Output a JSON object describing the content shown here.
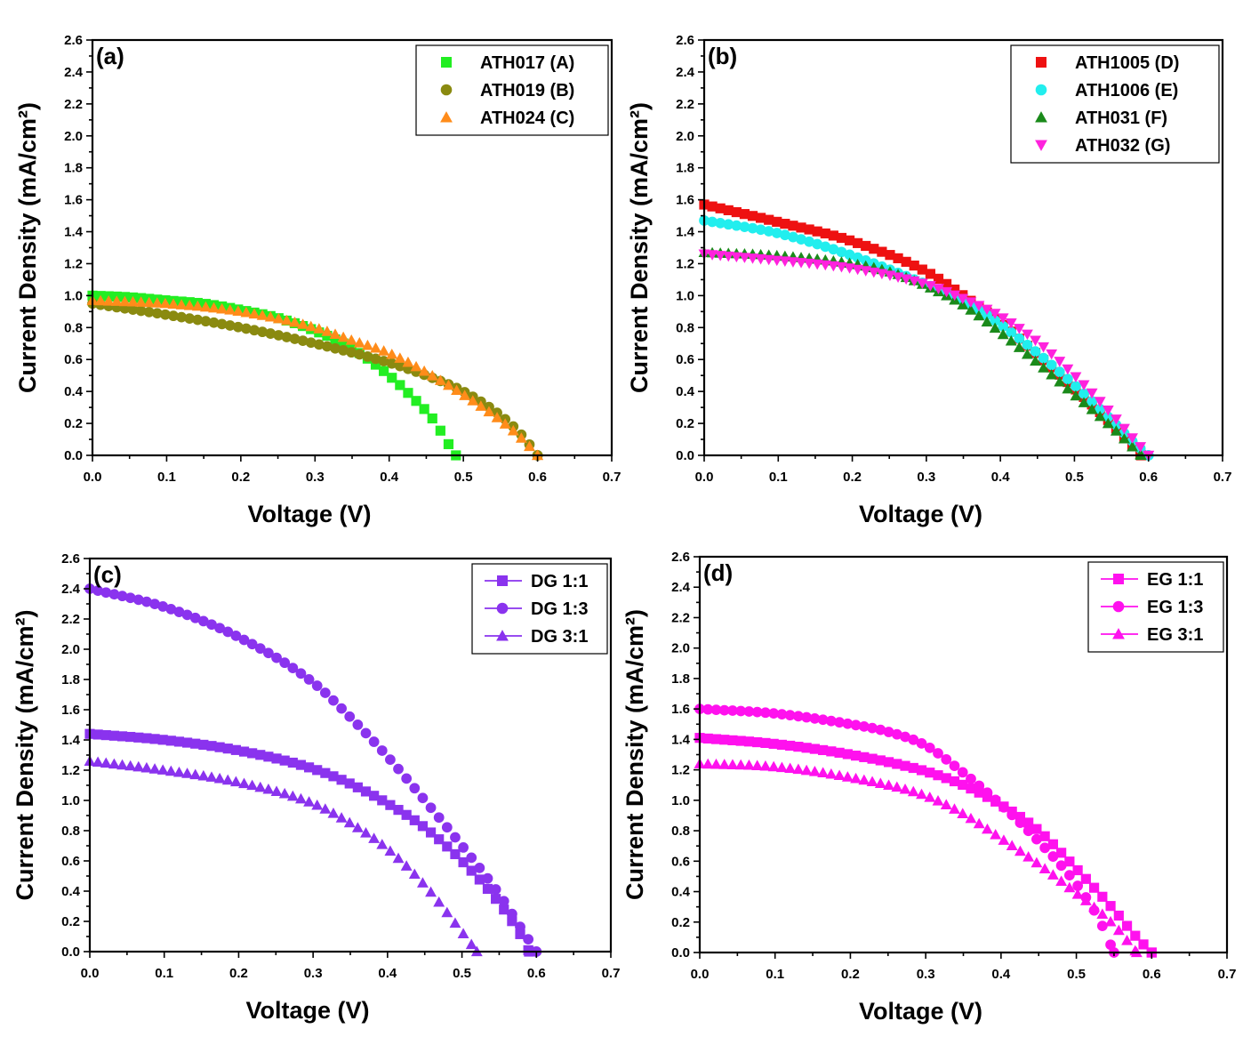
{
  "chart_data": [
    {
      "type": "scatter",
      "panel_label": "(a)",
      "xlabel": "Voltage (V)",
      "ylabel": "Current Density (mA/cm²)",
      "xlim": [
        0,
        0.7
      ],
      "ylim": [
        0,
        2.6
      ],
      "x_ticks": [
        "0.0",
        "0.1",
        "0.2",
        "0.3",
        "0.4",
        "0.5",
        "0.6",
        "0.7"
      ],
      "y_ticks": [
        "0.0",
        "0.2",
        "0.4",
        "0.6",
        "0.8",
        "1.0",
        "1.2",
        "1.4",
        "1.6",
        "1.8",
        "2.0",
        "2.2",
        "2.4",
        "2.6"
      ],
      "legend_position": "top-right",
      "legend_lines": false,
      "series": [
        {
          "name": "ATH017 (A)",
          "color": "#22ee22",
          "marker": "square",
          "voc": 0.49,
          "x": [
            0.0,
            0.05,
            0.1,
            0.15,
            0.2,
            0.25,
            0.3,
            0.35,
            0.4,
            0.43,
            0.46,
            0.48,
            0.49
          ],
          "y": [
            1.0,
            0.99,
            0.97,
            0.95,
            0.91,
            0.86,
            0.78,
            0.67,
            0.5,
            0.37,
            0.22,
            0.07,
            0.0
          ]
        },
        {
          "name": "ATH019 (B)",
          "color": "#8a8a10",
          "marker": "circle",
          "voc": 0.6,
          "x": [
            0.0,
            0.1,
            0.2,
            0.3,
            0.4,
            0.45,
            0.5,
            0.55,
            0.58,
            0.6
          ],
          "y": [
            0.95,
            0.88,
            0.8,
            0.7,
            0.58,
            0.5,
            0.4,
            0.25,
            0.12,
            0.0
          ]
        },
        {
          "name": "ATH024 (C)",
          "color": "#ff8c1a",
          "marker": "triangle-up",
          "voc": 0.6,
          "x": [
            0.0,
            0.1,
            0.2,
            0.3,
            0.35,
            0.4,
            0.45,
            0.5,
            0.55,
            0.58,
            0.6
          ],
          "y": [
            0.97,
            0.95,
            0.9,
            0.8,
            0.72,
            0.64,
            0.52,
            0.38,
            0.22,
            0.1,
            0.0
          ]
        }
      ]
    },
    {
      "type": "scatter",
      "panel_label": "(b)",
      "xlabel": "Voltage (V)",
      "ylabel": "Current Density (mA/cm²)",
      "xlim": [
        0,
        0.7
      ],
      "ylim": [
        0,
        2.6
      ],
      "x_ticks": [
        "0.0",
        "0.1",
        "0.2",
        "0.3",
        "0.4",
        "0.5",
        "0.6",
        "0.7"
      ],
      "y_ticks": [
        "0.0",
        "0.2",
        "0.4",
        "0.6",
        "0.8",
        "1.0",
        "1.2",
        "1.4",
        "1.6",
        "1.8",
        "2.0",
        "2.2",
        "2.4",
        "2.6"
      ],
      "legend_position": "top-right",
      "legend_lines": false,
      "series": [
        {
          "name": "ATH1005 (D)",
          "color": "#ee1111",
          "marker": "square",
          "voc": 0.59,
          "x": [
            0.0,
            0.1,
            0.2,
            0.3,
            0.35,
            0.4,
            0.45,
            0.5,
            0.55,
            0.58,
            0.59
          ],
          "y": [
            1.57,
            1.46,
            1.34,
            1.15,
            1.0,
            0.83,
            0.63,
            0.42,
            0.2,
            0.05,
            0.0
          ]
        },
        {
          "name": "ATH1006 (E)",
          "color": "#22eeee",
          "marker": "circle",
          "voc": 0.6,
          "x": [
            0.0,
            0.1,
            0.2,
            0.3,
            0.35,
            0.4,
            0.45,
            0.5,
            0.55,
            0.58,
            0.6
          ],
          "y": [
            1.47,
            1.39,
            1.25,
            1.07,
            0.97,
            0.82,
            0.64,
            0.44,
            0.22,
            0.08,
            0.0
          ]
        },
        {
          "name": "ATH031 (F)",
          "color": "#1a8a1a",
          "marker": "triangle-up",
          "voc": 0.59,
          "x": [
            0.0,
            0.1,
            0.2,
            0.25,
            0.3,
            0.35,
            0.4,
            0.45,
            0.5,
            0.55,
            0.59
          ],
          "y": [
            1.27,
            1.25,
            1.2,
            1.15,
            1.06,
            0.94,
            0.77,
            0.58,
            0.38,
            0.18,
            0.0
          ]
        },
        {
          "name": "ATH032 (G)",
          "color": "#ff22dd",
          "marker": "triangle-down",
          "voc": 0.6,
          "x": [
            0.0,
            0.1,
            0.2,
            0.3,
            0.35,
            0.4,
            0.45,
            0.5,
            0.55,
            0.58,
            0.6
          ],
          "y": [
            1.26,
            1.22,
            1.17,
            1.07,
            0.98,
            0.87,
            0.71,
            0.5,
            0.26,
            0.1,
            0.0
          ]
        }
      ]
    },
    {
      "type": "scatter",
      "panel_label": "(c)",
      "xlabel": "Voltage (V)",
      "ylabel": "Current Density (mA/cm²)",
      "xlim": [
        0,
        0.7
      ],
      "ylim": [
        0,
        2.6
      ],
      "x_ticks": [
        "0.0",
        "0.1",
        "0.2",
        "0.3",
        "0.4",
        "0.5",
        "0.6",
        "0.7"
      ],
      "y_ticks": [
        "0.0",
        "0.2",
        "0.4",
        "0.6",
        "0.8",
        "1.0",
        "1.2",
        "1.4",
        "1.6",
        "1.8",
        "2.0",
        "2.2",
        "2.4",
        "2.6"
      ],
      "legend_position": "top-right",
      "legend_lines": true,
      "series": [
        {
          "name": "DG 1:1",
          "color": "#8a33ee",
          "marker": "square",
          "voc": 0.59,
          "x": [
            0.0,
            0.1,
            0.2,
            0.3,
            0.35,
            0.4,
            0.45,
            0.5,
            0.55,
            0.58,
            0.59
          ],
          "y": [
            1.44,
            1.4,
            1.33,
            1.21,
            1.11,
            0.98,
            0.82,
            0.6,
            0.32,
            0.1,
            0.0
          ]
        },
        {
          "name": "DG 1:3",
          "color": "#8a33ee",
          "marker": "circle",
          "voc": 0.6,
          "x": [
            0.0,
            0.1,
            0.2,
            0.3,
            0.35,
            0.4,
            0.45,
            0.5,
            0.55,
            0.58,
            0.6
          ],
          "y": [
            2.4,
            2.28,
            2.08,
            1.78,
            1.55,
            1.29,
            1.0,
            0.7,
            0.38,
            0.15,
            0.0
          ]
        },
        {
          "name": "DG 3:1",
          "color": "#8a33ee",
          "marker": "triangle-up",
          "voc": 0.52,
          "x": [
            0.0,
            0.1,
            0.2,
            0.3,
            0.35,
            0.4,
            0.45,
            0.5,
            0.52
          ],
          "y": [
            1.26,
            1.2,
            1.12,
            0.98,
            0.85,
            0.68,
            0.44,
            0.13,
            0.0
          ]
        }
      ]
    },
    {
      "type": "scatter",
      "panel_label": "(d)",
      "xlabel": "Voltage (V)",
      "ylabel": "Current Density (mA/cm²)",
      "xlim": [
        0,
        0.7
      ],
      "ylim": [
        0,
        2.6
      ],
      "x_ticks": [
        "0.0",
        "0.1",
        "0.2",
        "0.3",
        "0.4",
        "0.5",
        "0.6",
        "0.7"
      ],
      "y_ticks": [
        "0.0",
        "0.2",
        "0.4",
        "0.6",
        "0.8",
        "1.0",
        "1.2",
        "1.4",
        "1.6",
        "1.8",
        "2.0",
        "2.2",
        "2.4",
        "2.6"
      ],
      "legend_position": "top-right",
      "legend_lines": true,
      "series": [
        {
          "name": "EG 1:1",
          "color": "#ff11ee",
          "marker": "square",
          "voc": 0.6,
          "x": [
            0.0,
            0.1,
            0.2,
            0.3,
            0.35,
            0.4,
            0.45,
            0.5,
            0.55,
            0.58,
            0.6
          ],
          "y": [
            1.41,
            1.37,
            1.3,
            1.19,
            1.1,
            0.97,
            0.8,
            0.55,
            0.28,
            0.1,
            0.0
          ]
        },
        {
          "name": "EG 1:3",
          "color": "#ff11ee",
          "marker": "circle",
          "voc": 0.55,
          "x": [
            0.0,
            0.1,
            0.2,
            0.25,
            0.3,
            0.35,
            0.4,
            0.45,
            0.5,
            0.53,
            0.55
          ],
          "y": [
            1.6,
            1.57,
            1.5,
            1.45,
            1.36,
            1.18,
            0.97,
            0.73,
            0.45,
            0.22,
            0.0
          ]
        },
        {
          "name": "EG 3:1",
          "color": "#ff11ee",
          "marker": "triangle-up",
          "voc": 0.58,
          "x": [
            0.0,
            0.1,
            0.2,
            0.3,
            0.35,
            0.4,
            0.45,
            0.5,
            0.55,
            0.58
          ],
          "y": [
            1.24,
            1.22,
            1.15,
            1.03,
            0.91,
            0.75,
            0.58,
            0.39,
            0.18,
            0.0
          ]
        }
      ]
    }
  ]
}
